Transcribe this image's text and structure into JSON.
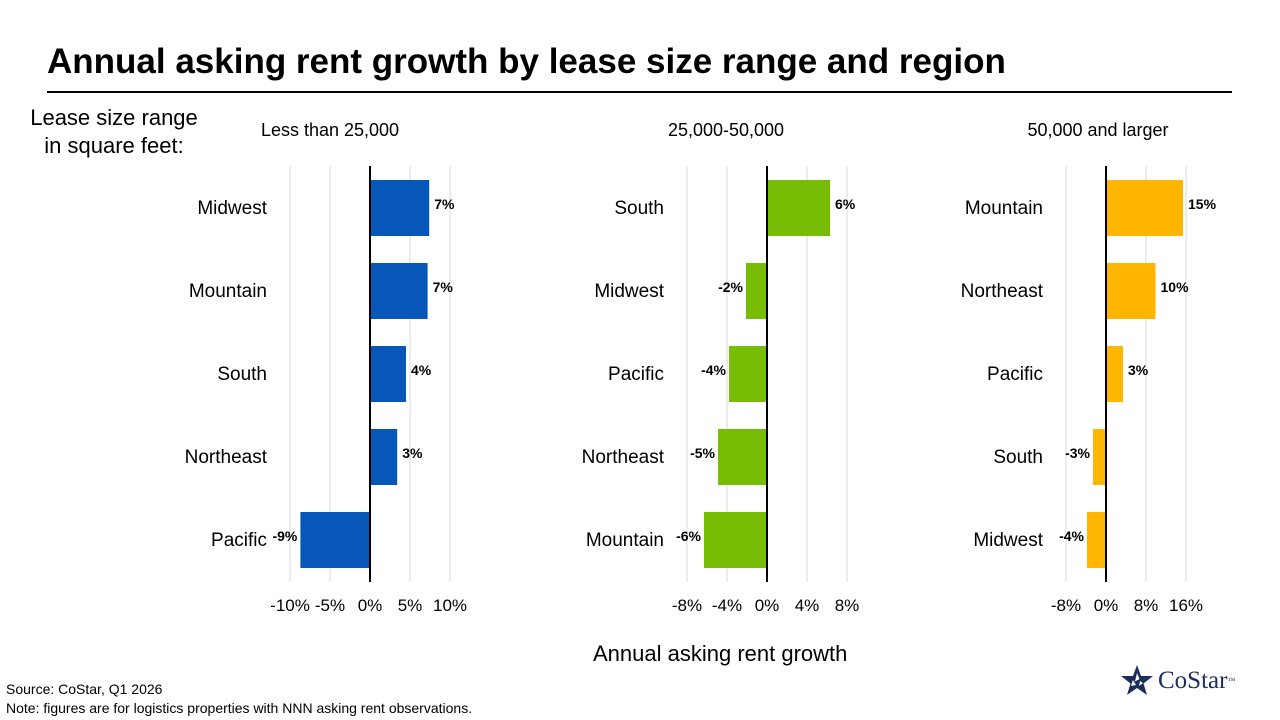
{
  "title": "Annual asking rent growth by lease size range and region",
  "lease_label": [
    "Lease size range",
    "in square feet:"
  ],
  "x_axis_label": "Annual asking rent growth",
  "source": "Source: CoStar, Q1 2026",
  "note": "Note: figures are for logistics properties with NNN asking rent observations.",
  "logo": {
    "text": "CoStar",
    "tm": "™"
  },
  "chart_data": [
    {
      "type": "bar",
      "orientation": "horizontal",
      "title": "Less than 25,000",
      "color": "#0757b8",
      "categories": [
        "Midwest",
        "Mountain",
        "South",
        "Northeast",
        "Pacific"
      ],
      "values": [
        7.4,
        7.2,
        4.5,
        3.4,
        -8.7
      ],
      "data_labels": [
        "7%",
        "7%",
        "4%",
        "3%",
        "-9%"
      ],
      "xlim": [
        -10,
        10
      ],
      "xticks": [
        -10,
        -5,
        0,
        5,
        10
      ],
      "xtick_labels": [
        "-10%",
        "-5%",
        "0%",
        "5%",
        "10%"
      ],
      "xlabel": "Annual asking rent growth"
    },
    {
      "type": "bar",
      "orientation": "horizontal",
      "title": "25,000-50,000",
      "color": "#77bc05",
      "categories": [
        "South",
        "Midwest",
        "Pacific",
        "Northeast",
        "Mountain"
      ],
      "values": [
        6.3,
        -2.1,
        -3.8,
        -4.9,
        -6.3
      ],
      "data_labels": [
        "6%",
        "-2%",
        "-4%",
        "-5%",
        "-6%"
      ],
      "xlim": [
        -8,
        8
      ],
      "xticks": [
        -8,
        -4,
        0,
        4,
        8
      ],
      "xtick_labels": [
        "-8%",
        "-4%",
        "0%",
        "4%",
        "8%"
      ],
      "xlabel": "Annual asking rent growth"
    },
    {
      "type": "bar",
      "orientation": "horizontal",
      "title": "50,000 and larger",
      "color": "#ffb600",
      "categories": [
        "Mountain",
        "Northeast",
        "Pacific",
        "South",
        "Midwest"
      ],
      "values": [
        15.4,
        9.9,
        3.4,
        -2.6,
        -3.8
      ],
      "data_labels": [
        "15%",
        "10%",
        "3%",
        "-3%",
        "-4%"
      ],
      "xlim": [
        -8,
        16
      ],
      "xticks": [
        -8,
        0,
        8,
        16
      ],
      "xtick_labels": [
        "-8%",
        "0%",
        "8%",
        "16%"
      ],
      "xlabel": "Annual asking rent growth"
    }
  ]
}
